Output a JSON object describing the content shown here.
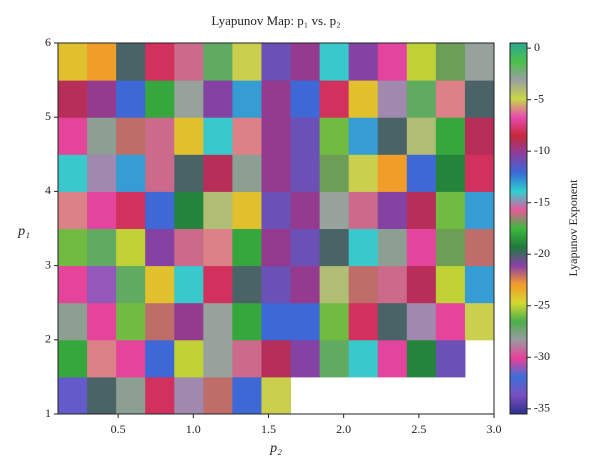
{
  "chart_data": {
    "type": "heatmap",
    "title": "Lyapunov Map: p₁ vs. p₂",
    "x_label": "p₂",
    "y_label": "p₁",
    "colorbar_label": "Lyapunov Exponent",
    "xlim": [
      0.1,
      3.0
    ],
    "ylim": [
      1,
      6
    ],
    "xticks": [
      0.5,
      {
        "value": 1,
        "label": "1.0"
      },
      1.5,
      {
        "value": 2,
        "label": "2.0"
      },
      2.5,
      {
        "value": 3,
        "label": "3.0"
      }
    ],
    "yticks": [
      1,
      2,
      3,
      4,
      5,
      6
    ],
    "zlim": [
      -35.5,
      0.5
    ],
    "zticks": [
      0,
      -5,
      -10,
      -15,
      -20,
      -25,
      -30,
      -35
    ],
    "colormap": [
      "#2b2f8f",
      "#7b4fbf",
      "#3d6fd8",
      "#e8409a",
      "#9a9aa0",
      "#4ab04a",
      "#d6d830",
      "#f39a2a",
      "#8a3fa8",
      "#1f7a3c",
      "#3db83d",
      "#e85a9a",
      "#2fd0d0",
      "#3a6ad8",
      "#8a3fa0",
      "#c8283c",
      "#e84ab0",
      "#c8d848",
      "#9aa0a0",
      "#4ac04a",
      "#2aa890"
    ],
    "z": [
      [
        -33,
        -20,
        -28,
        -8,
        -15,
        -22,
        -12,
        -5,
        null,
        null,
        null,
        null,
        null,
        null,
        null
      ],
      [
        -18,
        -6,
        -30,
        -12,
        -25,
        -3,
        -16,
        -9,
        -21,
        -27,
        -14,
        -7,
        -19,
        -11,
        null
      ],
      [
        -28,
        -30,
        -26,
        -22,
        -10,
        -3,
        -18,
        -12,
        -12,
        -26,
        -8,
        -20,
        -15,
        -30,
        -5
      ],
      [
        -30,
        -31,
        -27,
        -24,
        -14,
        -8,
        -20,
        -11,
        -10,
        -4,
        -22,
        -16,
        -9,
        -25,
        -13
      ],
      [
        -26,
        -27,
        -25,
        -21,
        -16,
        -6,
        -18,
        -10,
        -11,
        -20,
        -14,
        -28,
        -7,
        -17,
        -22
      ],
      [
        -6,
        -7,
        -8,
        -12,
        -19,
        -4,
        -24,
        -11,
        -10,
        -3,
        -16,
        -21,
        -9,
        -26,
        -13
      ],
      [
        -14,
        -15,
        -13,
        -16,
        -20,
        -9,
        -28,
        -10,
        -11,
        -17,
        -5,
        -23,
        -12,
        -19,
        -8
      ],
      [
        -30,
        -28,
        -22,
        -16,
        -24,
        -14,
        -6,
        -10,
        -11,
        -26,
        -13,
        -20,
        -4,
        -18,
        -9
      ],
      [
        -9,
        -10,
        -12,
        -18,
        -3,
        -21,
        -13,
        -10,
        -12,
        -8,
        -24,
        -15,
        -27,
        -6,
        -20
      ],
      [
        -24,
        -23,
        -20,
        -8,
        -16,
        -27,
        -5,
        -11,
        -10,
        -14,
        -21,
        -7,
        -25,
        -17,
        -3
      ]
    ]
  }
}
